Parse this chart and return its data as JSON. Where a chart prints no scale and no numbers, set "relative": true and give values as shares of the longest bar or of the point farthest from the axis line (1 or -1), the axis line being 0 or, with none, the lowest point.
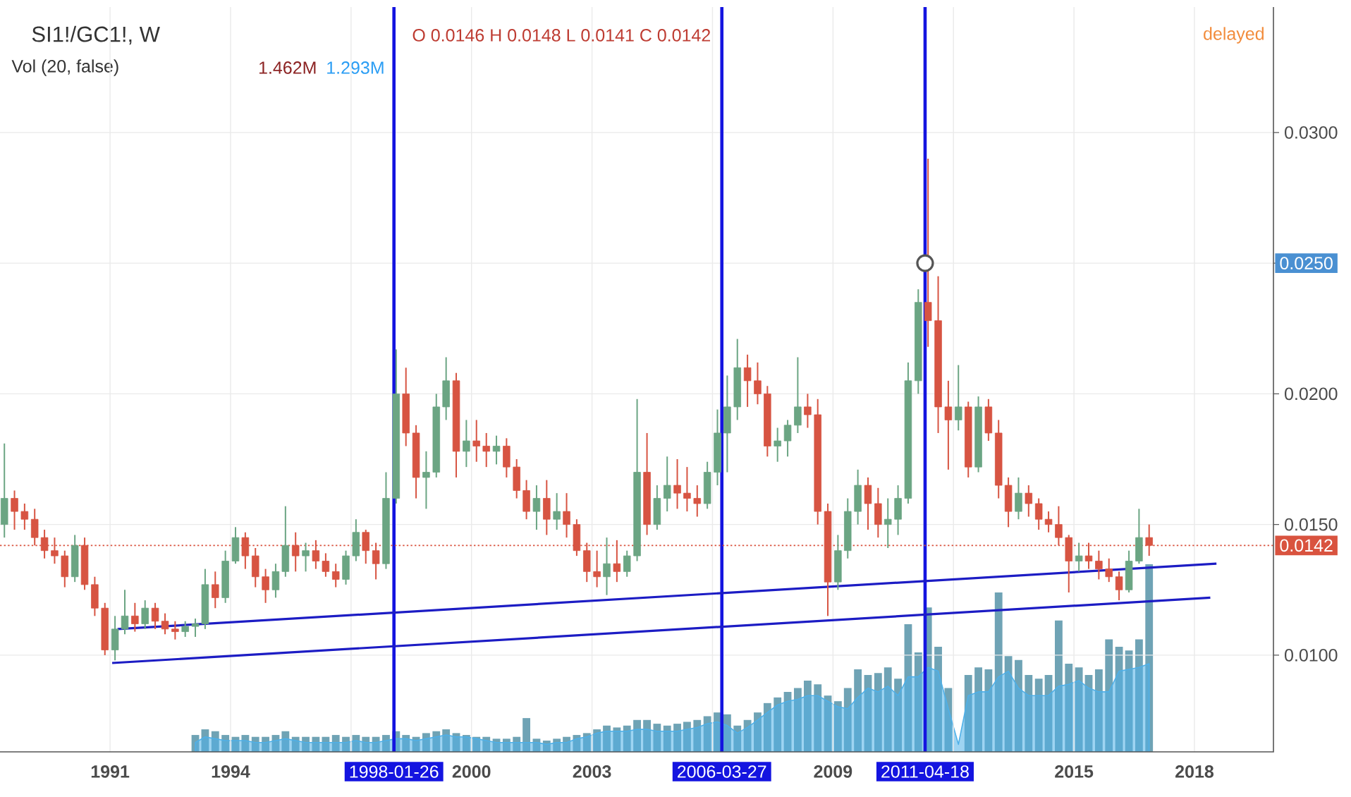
{
  "chart_data": [
    {
      "type": "candlestick",
      "title": "SI1!/GC1!, W",
      "subtitle": "O 0.0146 H 0.0148 L 0.0141 C 0.0142",
      "x": [
        "1988-05-15",
        "1988-08-15",
        "1988-11-15",
        "1989-02-15",
        "1989-05-15",
        "1989-08-15",
        "1989-11-15",
        "1990-02-15",
        "1990-05-15",
        "1990-08-15",
        "1990-11-15",
        "1991-02-15",
        "1991-05-15",
        "1991-08-15",
        "1991-11-15",
        "1992-02-15",
        "1992-05-15",
        "1992-08-15",
        "1992-11-15",
        "1993-02-15",
        "1993-05-15",
        "1993-08-15",
        "1993-11-15",
        "1994-02-15",
        "1994-05-15",
        "1994-08-15",
        "1994-11-15",
        "1995-02-15",
        "1995-05-15",
        "1995-08-15",
        "1995-11-15",
        "1996-02-15",
        "1996-05-15",
        "1996-08-15",
        "1996-11-15",
        "1997-02-15",
        "1997-05-15",
        "1997-08-15",
        "1997-11-15",
        "1998-02-15",
        "1998-05-15",
        "1998-08-15",
        "1998-11-15",
        "1999-02-15",
        "1999-05-15",
        "1999-08-15",
        "1999-11-15",
        "2000-02-15",
        "2000-05-15",
        "2000-08-15",
        "2000-11-15",
        "2001-02-15",
        "2001-05-15",
        "2001-08-15",
        "2001-11-15",
        "2002-02-15",
        "2002-05-15",
        "2002-08-15",
        "2002-11-15",
        "2003-02-15",
        "2003-05-15",
        "2003-08-15",
        "2003-11-15",
        "2004-02-15",
        "2004-05-15",
        "2004-08-15",
        "2004-11-15",
        "2005-02-15",
        "2005-05-15",
        "2005-08-15",
        "2005-11-15",
        "2006-02-15",
        "2006-05-15",
        "2006-08-15",
        "2006-11-15",
        "2007-02-15",
        "2007-05-15",
        "2007-08-15",
        "2007-11-15",
        "2008-02-15",
        "2008-05-15",
        "2008-08-15",
        "2008-11-15",
        "2009-02-15",
        "2009-05-15",
        "2009-08-15",
        "2009-11-15",
        "2010-02-15",
        "2010-05-15",
        "2010-08-15",
        "2010-11-15",
        "2011-02-15",
        "2011-05-15",
        "2011-08-15",
        "2011-11-15",
        "2012-02-15",
        "2012-05-15",
        "2012-08-15",
        "2012-11-15",
        "2013-02-15",
        "2013-05-15",
        "2013-08-15",
        "2013-11-15",
        "2014-02-15",
        "2014-05-15",
        "2014-08-15",
        "2014-11-15",
        "2015-02-15",
        "2015-05-15",
        "2015-08-15",
        "2015-11-15",
        "2016-02-15",
        "2016-05-15",
        "2016-08-15",
        "2016-11-15"
      ],
      "ohlc": [
        [
          0.015,
          0.0181,
          0.0145,
          0.016
        ],
        [
          0.016,
          0.0163,
          0.0148,
          0.0155
        ],
        [
          0.0155,
          0.0158,
          0.0148,
          0.0152
        ],
        [
          0.0152,
          0.0156,
          0.0142,
          0.0145
        ],
        [
          0.0145,
          0.0148,
          0.0137,
          0.014
        ],
        [
          0.014,
          0.0145,
          0.0135,
          0.0138
        ],
        [
          0.0138,
          0.014,
          0.0126,
          0.013
        ],
        [
          0.013,
          0.0146,
          0.0128,
          0.0142
        ],
        [
          0.0142,
          0.0145,
          0.0125,
          0.0127
        ],
        [
          0.0127,
          0.013,
          0.0115,
          0.0118
        ],
        [
          0.0118,
          0.012,
          0.01,
          0.0102
        ],
        [
          0.0102,
          0.0115,
          0.0098,
          0.011
        ],
        [
          0.011,
          0.0125,
          0.0108,
          0.0115
        ],
        [
          0.0115,
          0.012,
          0.0109,
          0.0112
        ],
        [
          0.0112,
          0.0121,
          0.011,
          0.0118
        ],
        [
          0.0118,
          0.012,
          0.011,
          0.0113
        ],
        [
          0.0113,
          0.0116,
          0.0108,
          0.011
        ],
        [
          0.011,
          0.0113,
          0.0106,
          0.0109
        ],
        [
          0.0109,
          0.0113,
          0.0107,
          0.0111
        ],
        [
          0.0111,
          0.0114,
          0.0107,
          0.0112
        ],
        [
          0.0112,
          0.0133,
          0.011,
          0.0127
        ],
        [
          0.0127,
          0.0132,
          0.0118,
          0.0122
        ],
        [
          0.0122,
          0.014,
          0.012,
          0.0136
        ],
        [
          0.0136,
          0.0149,
          0.0135,
          0.0145
        ],
        [
          0.0145,
          0.0147,
          0.0133,
          0.0138
        ],
        [
          0.0138,
          0.0141,
          0.0126,
          0.013
        ],
        [
          0.013,
          0.0133,
          0.012,
          0.0125
        ],
        [
          0.0125,
          0.0135,
          0.0122,
          0.0132
        ],
        [
          0.0132,
          0.0157,
          0.013,
          0.0142
        ],
        [
          0.0142,
          0.0147,
          0.0132,
          0.0138
        ],
        [
          0.0138,
          0.0143,
          0.0132,
          0.014
        ],
        [
          0.014,
          0.0144,
          0.0133,
          0.0136
        ],
        [
          0.0136,
          0.0139,
          0.013,
          0.0132
        ],
        [
          0.0132,
          0.0135,
          0.0126,
          0.0129
        ],
        [
          0.0129,
          0.014,
          0.0127,
          0.0138
        ],
        [
          0.0138,
          0.0152,
          0.0136,
          0.0147
        ],
        [
          0.0147,
          0.0148,
          0.0135,
          0.014
        ],
        [
          0.014,
          0.0143,
          0.0129,
          0.0135
        ],
        [
          0.0135,
          0.017,
          0.0133,
          0.016
        ],
        [
          0.016,
          0.0217,
          0.0158,
          0.02
        ],
        [
          0.02,
          0.021,
          0.018,
          0.0185
        ],
        [
          0.0185,
          0.0188,
          0.016,
          0.0168
        ],
        [
          0.0168,
          0.0178,
          0.0156,
          0.017
        ],
        [
          0.017,
          0.02,
          0.0168,
          0.0195
        ],
        [
          0.0195,
          0.0214,
          0.019,
          0.0205
        ],
        [
          0.0205,
          0.0208,
          0.0168,
          0.0178
        ],
        [
          0.0178,
          0.019,
          0.0172,
          0.0182
        ],
        [
          0.0182,
          0.019,
          0.0174,
          0.018
        ],
        [
          0.018,
          0.0185,
          0.0172,
          0.0178
        ],
        [
          0.0178,
          0.0184,
          0.0173,
          0.018
        ],
        [
          0.018,
          0.0183,
          0.0168,
          0.0172
        ],
        [
          0.0172,
          0.0175,
          0.016,
          0.0163
        ],
        [
          0.0163,
          0.0167,
          0.0152,
          0.0155
        ],
        [
          0.0155,
          0.0165,
          0.0148,
          0.016
        ],
        [
          0.016,
          0.0167,
          0.0146,
          0.0152
        ],
        [
          0.0152,
          0.0162,
          0.0148,
          0.0155
        ],
        [
          0.0155,
          0.0162,
          0.0145,
          0.015
        ],
        [
          0.015,
          0.0152,
          0.0138,
          0.014
        ],
        [
          0.014,
          0.0143,
          0.0128,
          0.0132
        ],
        [
          0.0132,
          0.014,
          0.0126,
          0.013
        ],
        [
          0.013,
          0.0145,
          0.0123,
          0.0135
        ],
        [
          0.0135,
          0.0144,
          0.0128,
          0.0132
        ],
        [
          0.0132,
          0.014,
          0.013,
          0.0138
        ],
        [
          0.0138,
          0.0198,
          0.0136,
          0.017
        ],
        [
          0.017,
          0.0185,
          0.0146,
          0.015
        ],
        [
          0.015,
          0.0165,
          0.0148,
          0.016
        ],
        [
          0.016,
          0.0176,
          0.0155,
          0.0165
        ],
        [
          0.0165,
          0.0175,
          0.0156,
          0.0162
        ],
        [
          0.0162,
          0.0172,
          0.0155,
          0.016
        ],
        [
          0.016,
          0.0165,
          0.0153,
          0.0158
        ],
        [
          0.0158,
          0.0174,
          0.0156,
          0.017
        ],
        [
          0.017,
          0.0194,
          0.0165,
          0.0185
        ],
        [
          0.0185,
          0.0207,
          0.017,
          0.0195
        ],
        [
          0.0195,
          0.0221,
          0.019,
          0.021
        ],
        [
          0.021,
          0.0215,
          0.0195,
          0.0205
        ],
        [
          0.0205,
          0.0212,
          0.0196,
          0.02
        ],
        [
          0.02,
          0.0203,
          0.0176,
          0.018
        ],
        [
          0.018,
          0.0187,
          0.0174,
          0.0182
        ],
        [
          0.0182,
          0.019,
          0.0176,
          0.0188
        ],
        [
          0.0188,
          0.0214,
          0.0185,
          0.0195
        ],
        [
          0.0195,
          0.02,
          0.0187,
          0.0192
        ],
        [
          0.0192,
          0.0198,
          0.015,
          0.0155
        ],
        [
          0.0155,
          0.0158,
          0.0115,
          0.0128
        ],
        [
          0.0128,
          0.0146,
          0.0125,
          0.014
        ],
        [
          0.014,
          0.016,
          0.0137,
          0.0155
        ],
        [
          0.0155,
          0.0171,
          0.015,
          0.0165
        ],
        [
          0.0165,
          0.0168,
          0.0148,
          0.0158
        ],
        [
          0.0158,
          0.0164,
          0.0145,
          0.015
        ],
        [
          0.015,
          0.016,
          0.0141,
          0.0152
        ],
        [
          0.0152,
          0.0165,
          0.0146,
          0.016
        ],
        [
          0.016,
          0.0212,
          0.0158,
          0.0205
        ],
        [
          0.0205,
          0.024,
          0.02,
          0.0235
        ],
        [
          0.0235,
          0.029,
          0.0218,
          0.0228
        ],
        [
          0.0228,
          0.0245,
          0.0185,
          0.0195
        ],
        [
          0.0195,
          0.0205,
          0.0171,
          0.019
        ],
        [
          0.019,
          0.0211,
          0.0186,
          0.0195
        ],
        [
          0.0195,
          0.0197,
          0.0168,
          0.0172
        ],
        [
          0.0172,
          0.0199,
          0.017,
          0.0195
        ],
        [
          0.0195,
          0.0198,
          0.0182,
          0.0185
        ],
        [
          0.0185,
          0.019,
          0.016,
          0.0165
        ],
        [
          0.0165,
          0.0168,
          0.0149,
          0.0155
        ],
        [
          0.0155,
          0.0168,
          0.0152,
          0.0162
        ],
        [
          0.0162,
          0.0165,
          0.0153,
          0.0158
        ],
        [
          0.0158,
          0.016,
          0.0148,
          0.0152
        ],
        [
          0.0152,
          0.0155,
          0.0147,
          0.015
        ],
        [
          0.015,
          0.0157,
          0.0142,
          0.0145
        ],
        [
          0.0145,
          0.0146,
          0.0124,
          0.0136
        ],
        [
          0.0136,
          0.0143,
          0.0132,
          0.0138
        ],
        [
          0.0138,
          0.0143,
          0.0133,
          0.0136
        ],
        [
          0.0136,
          0.014,
          0.0129,
          0.0133
        ],
        [
          0.0133,
          0.0137,
          0.0128,
          0.013
        ],
        [
          0.013,
          0.0132,
          0.0121,
          0.0125
        ],
        [
          0.0125,
          0.014,
          0.0124,
          0.0136
        ],
        [
          0.0136,
          0.0156,
          0.0135,
          0.0145
        ],
        [
          0.0145,
          0.015,
          0.0138,
          0.0142
        ]
      ],
      "colors": [
        "#6ba583",
        "#d75442",
        "#d75442",
        "#d75442",
        "#d75442",
        "#d75442",
        "#d75442",
        "#6ba583",
        "#d75442",
        "#d75442",
        "#d75442",
        "#6ba583",
        "#6ba583",
        "#d75442",
        "#6ba583",
        "#d75442",
        "#d75442",
        "#d75442",
        "#6ba583",
        "#6ba583",
        "#6ba583",
        "#d75442",
        "#6ba583",
        "#6ba583",
        "#d75442",
        "#d75442",
        "#d75442",
        "#6ba583",
        "#6ba583",
        "#d75442",
        "#6ba583",
        "#d75442",
        "#d75442",
        "#d75442",
        "#6ba583",
        "#6ba583",
        "#d75442",
        "#d75442",
        "#6ba583",
        "#6ba583",
        "#d75442",
        "#d75442",
        "#6ba583",
        "#6ba583",
        "#6ba583",
        "#d75442",
        "#6ba583",
        "#d75442",
        "#d75442",
        "#6ba583",
        "#d75442",
        "#d75442",
        "#d75442",
        "#6ba583",
        "#d75442",
        "#6ba583",
        "#d75442",
        "#d75442",
        "#d75442",
        "#d75442",
        "#6ba583",
        "#d75442",
        "#6ba583",
        "#6ba583",
        "#d75442",
        "#6ba583",
        "#6ba583",
        "#d75442",
        "#d75442",
        "#d75442",
        "#6ba583",
        "#6ba583",
        "#6ba583",
        "#6ba583",
        "#d75442",
        "#d75442",
        "#d75442",
        "#6ba583",
        "#6ba583",
        "#6ba583",
        "#d75442",
        "#d75442",
        "#d75442",
        "#6ba583",
        "#6ba583",
        "#6ba583",
        "#d75442",
        "#d75442",
        "#6ba583",
        "#6ba583",
        "#6ba583",
        "#6ba583",
        "#d75442",
        "#d75442",
        "#d75442",
        "#6ba583",
        "#d75442",
        "#6ba583",
        "#d75442",
        "#d75442",
        "#d75442",
        "#6ba583",
        "#d75442",
        "#d75442",
        "#d75442",
        "#d75442",
        "#d75442",
        "#6ba583",
        "#d75442",
        "#d75442",
        "#d75442",
        "#d75442",
        "#6ba583",
        "#6ba583",
        "#d75442"
      ],
      "series": [
        {
          "type": "line",
          "color": "#1c1cc4",
          "x": [
            "1991-03-10",
            "2018-07-20"
          ],
          "values": [
            0.011,
            0.0135
          ]
        },
        {
          "type": "line",
          "color": "#1c1cc4",
          "x": [
            "1991-01-20",
            "2018-05-25"
          ],
          "values": [
            0.0097,
            0.0122
          ]
        },
        {
          "type": "scatter",
          "color": "#555555",
          "marker": "circle",
          "x": [
            "2011-04-18"
          ],
          "values": [
            0.025
          ]
        }
      ],
      "xlim": [
        "1988-04-05",
        "2019-12-20"
      ],
      "ylim": [
        0.0063,
        0.0348
      ],
      "xticks": [
        "1991",
        "1994",
        {
          "value": "1997",
          "label": null
        },
        "2000",
        "2003",
        {
          "value": "2006",
          "label": null
        },
        "2009",
        {
          "value": "2012",
          "label": null
        },
        "2015",
        "2018"
      ],
      "yticks": [
        {
          "value": 0.01,
          "label": "0.0100"
        },
        {
          "value": 0.015,
          "label": "0.0150"
        },
        {
          "value": 0.02,
          "label": "0.0200"
        },
        {
          "value": 0.025,
          "label": null
        },
        {
          "value": 0.03,
          "label": "0.0300"
        }
      ],
      "grid": true,
      "ref_lines": [
        {
          "axis": "x",
          "value": "1998-01-26",
          "label": "1998-01-26",
          "color": "#1414e0"
        },
        {
          "axis": "x",
          "value": "2006-03-27",
          "label": "2006-03-27",
          "color": "#1414e0"
        },
        {
          "axis": "x",
          "value": "2011-04-18",
          "label": "2011-04-18",
          "color": "#1414e0"
        },
        {
          "axis": "y",
          "value": 0.0142,
          "label": "0.0142",
          "color": "#d9533f",
          "line_style": "dotted"
        }
      ],
      "annotations": [
        "delayed",
        "0.0250"
      ]
    },
    {
      "type": "bar",
      "title": "Vol (20, false)",
      "relative": true,
      "tick_labels": false,
      "xlim": [
        "1988-04-05",
        "2019-12-20"
      ],
      "x": [
        "1993-02-15",
        "1993-05-15",
        "1993-08-15",
        "1993-11-15",
        "1994-02-15",
        "1994-05-15",
        "1994-08-15",
        "1994-11-15",
        "1995-02-15",
        "1995-05-15",
        "1995-08-15",
        "1995-11-15",
        "1996-02-15",
        "1996-05-15",
        "1996-08-15",
        "1996-11-15",
        "1997-02-15",
        "1997-05-15",
        "1997-08-15",
        "1997-11-15",
        "1998-02-15",
        "1998-05-15",
        "1998-08-15",
        "1998-11-15",
        "1999-02-15",
        "1999-05-15",
        "1999-08-15",
        "1999-11-15",
        "2000-02-15",
        "2000-05-15",
        "2000-08-15",
        "2000-11-15",
        "2001-02-15",
        "2001-05-15",
        "2001-08-15",
        "2001-11-15",
        "2002-02-15",
        "2002-05-15",
        "2002-08-15",
        "2002-11-15",
        "2003-02-15",
        "2003-05-15",
        "2003-08-15",
        "2003-11-15",
        "2004-02-15",
        "2004-05-15",
        "2004-08-15",
        "2004-11-15",
        "2005-02-15",
        "2005-05-15",
        "2005-08-15",
        "2005-11-15",
        "2006-02-15",
        "2006-05-15",
        "2006-08-15",
        "2006-11-15",
        "2007-02-15",
        "2007-05-15",
        "2007-08-15",
        "2007-11-15",
        "2008-02-15",
        "2008-05-15",
        "2008-08-15",
        "2008-11-15",
        "2009-02-15",
        "2009-05-15",
        "2009-08-15",
        "2009-11-15",
        "2010-02-15",
        "2010-05-15",
        "2010-08-15",
        "2010-11-15",
        "2011-02-15",
        "2011-05-15",
        "2011-08-15",
        "2011-11-15",
        "2012-02-15",
        "2012-05-15",
        "2012-08-15",
        "2012-11-15",
        "2013-02-15",
        "2013-05-15",
        "2013-08-15",
        "2013-11-15",
        "2014-02-15",
        "2014-05-15",
        "2014-08-15",
        "2014-11-15",
        "2015-02-15",
        "2015-05-15",
        "2015-08-15",
        "2015-11-15",
        "2016-02-15",
        "2016-05-15",
        "2016-08-15",
        "2016-11-15"
      ],
      "series": [
        {
          "type": "bar",
          "color": "#6fa3b5",
          "values": [
            0.09,
            0.12,
            0.11,
            0.09,
            0.08,
            0.09,
            0.08,
            0.08,
            0.09,
            0.11,
            0.08,
            0.08,
            0.08,
            0.08,
            0.09,
            0.08,
            0.09,
            0.08,
            0.08,
            0.09,
            0.11,
            0.09,
            0.08,
            0.1,
            0.11,
            0.12,
            0.1,
            0.09,
            0.08,
            0.08,
            0.07,
            0.07,
            0.08,
            0.18,
            0.07,
            0.06,
            0.07,
            0.08,
            0.09,
            0.1,
            0.12,
            0.14,
            0.13,
            0.14,
            0.17,
            0.17,
            0.15,
            0.14,
            0.15,
            0.16,
            0.17,
            0.19,
            0.21,
            0.2,
            0.14,
            0.17,
            0.21,
            0.26,
            0.29,
            0.32,
            0.34,
            0.38,
            0.36,
            0.3,
            0.27,
            0.34,
            0.44,
            0.41,
            0.42,
            0.45,
            0.39,
            0.68,
            0.53,
            0.77,
            0.56,
            0.34,
            0,
            0.41,
            0.45,
            0.44,
            0.85,
            0.51,
            0.49,
            0.41,
            0.39,
            0.41,
            0.7,
            0.47,
            0.45,
            0.41,
            0.44,
            0.6,
            0.56,
            0.54,
            0.6,
            1
          ]
        },
        {
          "type": "area",
          "color": "#4fb0e8",
          "values": [
            0.05,
            0.08,
            0.07,
            0.06,
            0.06,
            0.06,
            0.05,
            0.05,
            0.06,
            0.07,
            0.06,
            0.05,
            0.05,
            0.05,
            0.05,
            0.05,
            0.06,
            0.05,
            0.05,
            0.06,
            0.07,
            0.07,
            0.06,
            0.07,
            0.08,
            0.09,
            0.08,
            0.08,
            0.07,
            0.06,
            0.05,
            0.05,
            0.05,
            0.05,
            0.05,
            0.04,
            0.05,
            0.05,
            0.07,
            0.08,
            0.1,
            0.11,
            0.11,
            0.11,
            0.12,
            0.12,
            0.11,
            0.11,
            0.11,
            0.12,
            0.13,
            0.15,
            0.16,
            0.14,
            0.1,
            0.13,
            0.17,
            0.21,
            0.25,
            0.27,
            0.28,
            0.3,
            0.3,
            0.27,
            0.24,
            0.23,
            0.29,
            0.34,
            0.32,
            0.35,
            0.3,
            0.4,
            0.4,
            0.45,
            0.43,
            0.23,
            0.04,
            0.3,
            0.32,
            0.32,
            0.4,
            0.43,
            0.34,
            0.3,
            0.3,
            0.3,
            0.35,
            0.36,
            0.38,
            0.34,
            0.32,
            0.32,
            0.43,
            0.44,
            0.45,
            0.47
          ]
        }
      ],
      "annotations": [
        "1.462M",
        "1.293M"
      ]
    }
  ]
}
